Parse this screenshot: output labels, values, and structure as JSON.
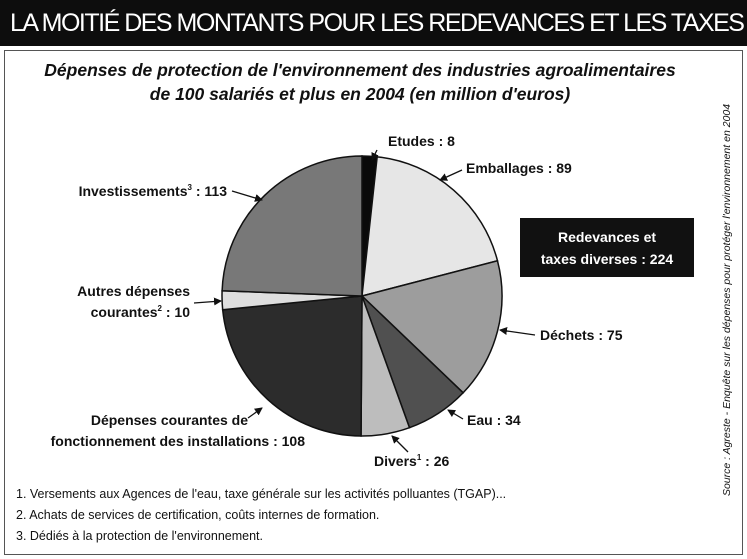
{
  "header": {
    "banner": "LA MOITIÉ DES MONTANTS POUR LES REDEVANCES ET LES TAXES"
  },
  "chart_data": {
    "type": "pie",
    "title": "Dépenses de protection de l'environnement des industries agroalimentaires de 100 salariés et plus en 2004 (en million d'euros)",
    "title_lines": [
      "Dépenses de protection de l'environnement des industries agroalimentaires",
      "de 100 salariés et plus en 2004 (en million d'euros)"
    ],
    "slices": [
      {
        "label": "Etudes",
        "sup": "",
        "value": 8,
        "color": "#0a0a0a"
      },
      {
        "label": "Emballages",
        "sup": "",
        "value": 89,
        "color": "#e6e6e6"
      },
      {
        "label": "Déchets",
        "sup": "",
        "value": 75,
        "color": "#9d9d9d"
      },
      {
        "label": "Eau",
        "sup": "",
        "value": 34,
        "color": "#505050"
      },
      {
        "label": "Divers",
        "sup": "1",
        "value": 26,
        "color": "#bdbdbd"
      },
      {
        "label": "Dépenses courantes de fonctionnement des installations",
        "sup": "",
        "value": 108,
        "color": "#2c2c2c"
      },
      {
        "label": "Autres dépenses courantes",
        "sup": "2",
        "value": 10,
        "color": "#dedede"
      },
      {
        "label": "Investissements",
        "sup": "3",
        "value": 113,
        "color": "#787878"
      }
    ],
    "label_text": {
      "etudes": "Etudes : 8",
      "emballages": "Emballages : 89",
      "dechets": "Déchets : 75",
      "eau": "Eau : 34",
      "divers": "Divers",
      "divers_sup": "1",
      "divers_value": " : 26",
      "depenses_line1": "Dépenses courantes de",
      "depenses_line2": "fonctionnement des installations : 108",
      "autres_line1": "Autres dépenses",
      "autres_line2": "courantes",
      "autres_sup": "2",
      "autres_value": " : 10",
      "invest": "Investissements",
      "invest_sup": "3",
      "invest_value": " : 113"
    },
    "callout": {
      "line1": "Redevances et",
      "line2": "taxes diverses : 224"
    }
  },
  "footnotes": [
    "1. Versements aux Agences de l'eau, taxe générale sur les activités polluantes (TGAP)...",
    "2. Achats de services de certification, coûts internes de formation.",
    "3. Dédiés à la protection de l'environnement."
  ],
  "source": "Source : Agreste - Enquête sur les dépenses pour protéger l'environnement en 2004"
}
